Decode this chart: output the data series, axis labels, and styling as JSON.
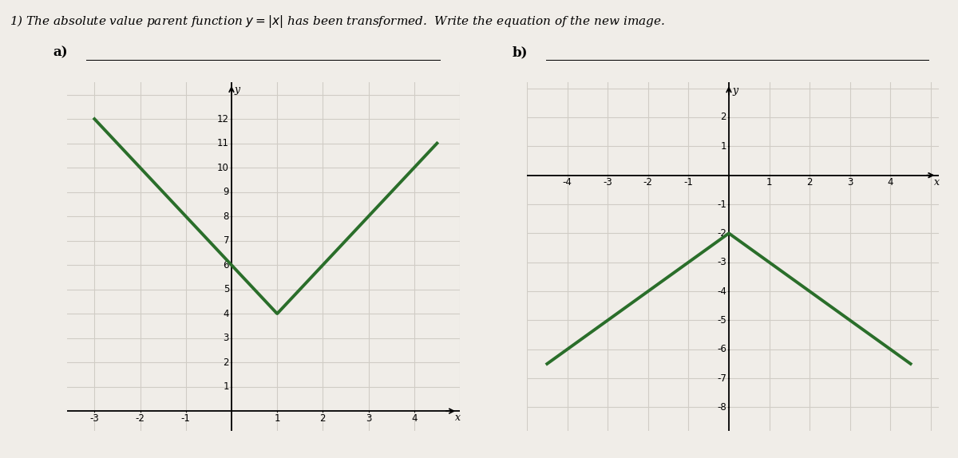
{
  "title": "1) The absolute value parent function $y = |x|$ has been transformed.  Write the equation of the new image.",
  "background_color": "#f0ede8",
  "graph_a": {
    "label": "a)",
    "xlim": [
      -3.6,
      5.0
    ],
    "ylim": [
      -0.8,
      13.5
    ],
    "xticks": [
      -3,
      -2,
      -1,
      1,
      2,
      3,
      4
    ],
    "yticks": [
      1,
      2,
      3,
      4,
      5,
      6,
      7,
      8,
      9,
      10,
      11,
      12
    ],
    "vertex_x": 1,
    "vertex_y": 4,
    "slope": 2,
    "x_start": -3.0,
    "x_end": 4.5,
    "line_color": "#2a6e2a",
    "line_width": 2.8,
    "axis_x_pos": 0,
    "axis_y_pos": 0
  },
  "graph_b": {
    "label": "b)",
    "xlim": [
      -5.0,
      5.2
    ],
    "ylim": [
      -8.8,
      3.2
    ],
    "xticks": [
      -4,
      -3,
      -2,
      -1,
      1,
      2,
      3,
      4
    ],
    "yticks": [
      -8,
      -7,
      -6,
      -5,
      -4,
      -3,
      -2,
      -1,
      1,
      2
    ],
    "vertex_x": 0,
    "vertex_y": -2,
    "slope": -1,
    "x_start": -4.5,
    "x_end": 4.5,
    "line_color": "#2a6e2a",
    "line_width": 2.8,
    "axis_x_pos": 0,
    "axis_y_pos": 0
  },
  "grid_color": "#d0ccc5",
  "tick_fontsize": 8.5,
  "label_fontsize": 12,
  "title_fontsize": 11
}
